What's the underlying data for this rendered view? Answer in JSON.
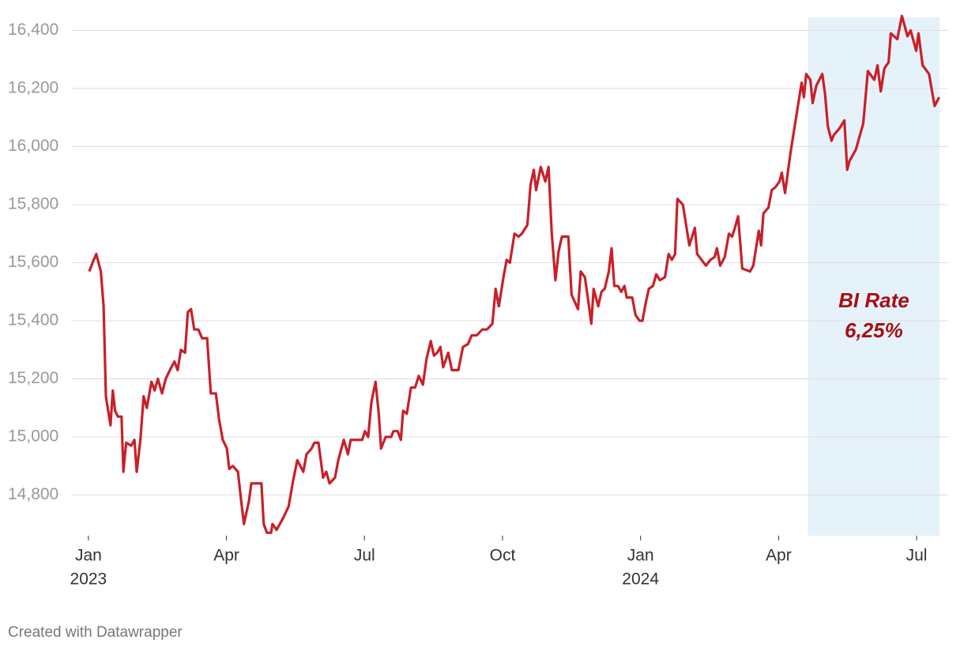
{
  "chart_data": {
    "type": "line",
    "footer": "Created with Datawrapper",
    "color": "#c8202a",
    "grid": true,
    "xlim": [
      -0.29,
      18.6
    ],
    "ylim": [
      14660,
      16445
    ],
    "yticks": [
      {
        "value": 14800,
        "label": "14,800"
      },
      {
        "value": 15000,
        "label": "15,000"
      },
      {
        "value": 15200,
        "label": "15,200"
      },
      {
        "value": 15400,
        "label": "15,400"
      },
      {
        "value": 15600,
        "label": "15,600"
      },
      {
        "value": 15800,
        "label": "15,800"
      },
      {
        "value": 16000,
        "label": "16,000"
      },
      {
        "value": 16200,
        "label": "16,200"
      },
      {
        "value": 16400,
        "label": "16,400"
      }
    ],
    "xticks": [
      {
        "value": 0,
        "label": "Jan"
      },
      {
        "value": 3,
        "label": "Apr"
      },
      {
        "value": 6,
        "label": "Jul"
      },
      {
        "value": 9,
        "label": "Oct"
      },
      {
        "value": 12,
        "label": "Jan"
      },
      {
        "value": 15,
        "label": "Apr"
      },
      {
        "value": 18,
        "label": "Jul"
      }
    ],
    "xtick_years": [
      {
        "value": 0,
        "label": "2023"
      },
      {
        "value": 12,
        "label": "2024"
      }
    ],
    "highlight": {
      "x": [
        15.64,
        18.5
      ],
      "color": "#e6f2f9",
      "text": [
        "BI Rate",
        "6,25%"
      ]
    },
    "x": [
      0.02,
      0.09,
      0.17,
      0.27,
      0.33,
      0.38,
      0.48,
      0.53,
      0.58,
      0.64,
      0.72,
      0.76,
      0.82,
      0.93,
      1.0,
      1.05,
      1.13,
      1.2,
      1.27,
      1.37,
      1.44,
      1.51,
      1.6,
      1.68,
      1.77,
      1.87,
      1.94,
      2.01,
      2.1,
      2.16,
      2.23,
      2.3,
      2.39,
      2.47,
      2.58,
      2.66,
      2.77,
      2.84,
      2.92,
      3.01,
      3.06,
      3.14,
      3.25,
      3.32,
      3.38,
      3.49,
      3.54,
      3.76,
      3.81,
      3.88,
      3.97,
      4.0,
      4.09,
      4.16,
      4.23,
      4.35,
      4.45,
      4.54,
      4.67,
      4.74,
      4.85,
      4.91,
      5.0,
      5.1,
      5.17,
      5.24,
      5.36,
      5.43,
      5.55,
      5.64,
      5.7,
      5.81,
      5.95,
      6.01,
      6.08,
      6.15,
      6.24,
      6.31,
      6.36,
      6.46,
      6.58,
      6.63,
      6.72,
      6.79,
      6.84,
      6.92,
      7.01,
      7.1,
      7.18,
      7.27,
      7.35,
      7.44,
      7.51,
      7.58,
      7.65,
      7.71,
      7.82,
      7.9,
      8.04,
      8.14,
      8.25,
      8.33,
      8.44,
      8.56,
      8.66,
      8.78,
      8.85,
      8.92,
      9.02,
      9.09,
      9.16,
      9.26,
      9.35,
      9.42,
      9.54,
      9.61,
      9.68,
      9.73,
      9.83,
      9.93,
      10.0,
      10.07,
      10.15,
      10.22,
      10.29,
      10.43,
      10.5,
      10.64,
      10.7,
      10.79,
      10.88,
      10.93,
      10.98,
      11.08,
      11.15,
      11.22,
      11.31,
      11.37,
      11.43,
      11.51,
      11.58,
      11.65,
      11.7,
      11.82,
      11.89,
      11.98,
      12.04,
      12.11,
      12.18,
      12.27,
      12.34,
      12.42,
      12.53,
      12.61,
      12.68,
      12.75,
      12.8,
      12.92,
      12.99,
      13.06,
      13.18,
      13.23,
      13.42,
      13.52,
      13.61,
      13.66,
      13.73,
      13.83,
      13.92,
      13.99,
      14.05,
      14.12,
      14.21,
      14.38,
      14.45,
      14.57,
      14.62,
      14.67,
      14.78,
      14.85,
      14.93,
      15.02,
      15.07,
      15.14,
      15.26,
      15.38,
      15.5,
      15.55,
      15.6,
      15.69,
      15.74,
      15.82,
      15.95,
      16.01,
      16.07,
      16.15,
      16.2,
      16.31,
      16.43,
      16.49,
      16.54,
      16.61,
      16.68,
      16.84,
      16.94,
      17.08,
      17.15,
      17.22,
      17.3,
      17.39,
      17.44,
      17.58,
      17.68,
      17.75,
      17.8,
      17.87,
      17.99,
      18.04,
      18.13,
      18.27,
      18.39,
      18.49
    ],
    "values": [
      15570,
      15600,
      15630,
      15570,
      15450,
      15140,
      15040,
      15160,
      15090,
      15070,
      15070,
      14880,
      14980,
      14970,
      14990,
      14880,
      14990,
      15140,
      15100,
      15190,
      15160,
      15200,
      15150,
      15200,
      15230,
      15260,
      15230,
      15300,
      15290,
      15430,
      15440,
      15370,
      15370,
      15340,
      15340,
      15150,
      15150,
      15060,
      14990,
      14960,
      14890,
      14900,
      14880,
      14780,
      14700,
      14780,
      14840,
      14840,
      14700,
      14670,
      14670,
      14700,
      14680,
      14700,
      14720,
      14760,
      14850,
      14920,
      14880,
      14940,
      14960,
      14980,
      14980,
      14860,
      14880,
      14840,
      14860,
      14920,
      14990,
      14940,
      14990,
      14990,
      14990,
      15020,
      15000,
      15120,
      15190,
      15080,
      14960,
      15000,
      15000,
      15020,
      15020,
      14990,
      15090,
      15080,
      15170,
      15170,
      15210,
      15180,
      15270,
      15330,
      15280,
      15290,
      15310,
      15240,
      15290,
      15230,
      15230,
      15310,
      15320,
      15350,
      15350,
      15370,
      15370,
      15390,
      15510,
      15450,
      15550,
      15610,
      15600,
      15700,
      15690,
      15700,
      15730,
      15870,
      15920,
      15850,
      15930,
      15880,
      15930,
      15700,
      15540,
      15640,
      15690,
      15690,
      15490,
      15440,
      15570,
      15550,
      15450,
      15390,
      15510,
      15450,
      15500,
      15510,
      15570,
      15650,
      15520,
      15520,
      15500,
      15520,
      15480,
      15480,
      15420,
      15400,
      15400,
      15460,
      15510,
      15520,
      15560,
      15540,
      15550,
      15630,
      15610,
      15630,
      15820,
      15800,
      15730,
      15660,
      15720,
      15630,
      15590,
      15610,
      15620,
      15650,
      15590,
      15620,
      15700,
      15690,
      15720,
      15760,
      15580,
      15570,
      15590,
      15710,
      15660,
      15770,
      15790,
      15850,
      15860,
      15880,
      15910,
      15840,
      15980,
      16100,
      16220,
      16170,
      16250,
      16230,
      16150,
      16210,
      16250,
      16180,
      16070,
      16020,
      16040,
      16060,
      16090,
      15920,
      15950,
      15970,
      15990,
      16080,
      16260,
      16230,
      16280,
      16190,
      16270,
      16290,
      16390,
      16370,
      16450,
      16410,
      16380,
      16400,
      16330,
      16390,
      16280,
      16250,
      16140,
      16170
    ]
  }
}
